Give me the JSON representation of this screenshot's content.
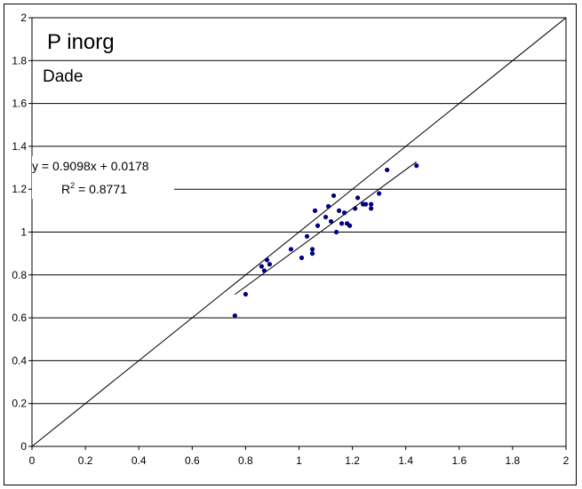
{
  "chart_data": {
    "type": "scatter",
    "title": "P inorg",
    "subtitle": "Dade",
    "xlabel": "",
    "ylabel": "",
    "xlim": [
      0,
      2
    ],
    "ylim": [
      0,
      2
    ],
    "x_ticks": [
      "0",
      "0.2",
      "0.4",
      "0.6",
      "0.8",
      "1",
      "1.2",
      "1.4",
      "1.6",
      "1.8",
      "2"
    ],
    "y_ticks": [
      "0",
      "0.2",
      "0.4",
      "0.6",
      "0.8",
      "1",
      "1.2",
      "1.4",
      "1.6",
      "1.8",
      "2"
    ],
    "grid": "horizontal",
    "legend": "none",
    "marker_color": "#000080",
    "line_color": "#000000",
    "reference_line": {
      "from": [
        0,
        0
      ],
      "to": [
        2,
        2
      ]
    },
    "trendline": {
      "slope": 0.9098,
      "intercept": 0.0178,
      "x_range": [
        0.76,
        1.44
      ]
    },
    "equation_text": "y = 0.9098x + 0.0178",
    "r2_prefix": "R",
    "r2_sup": "2",
    "r2_suffix": " = 0.8771",
    "points": [
      {
        "x": 0.76,
        "y": 0.61
      },
      {
        "x": 0.8,
        "y": 0.71
      },
      {
        "x": 0.86,
        "y": 0.84
      },
      {
        "x": 0.87,
        "y": 0.82
      },
      {
        "x": 0.88,
        "y": 0.87
      },
      {
        "x": 0.89,
        "y": 0.85
      },
      {
        "x": 0.97,
        "y": 0.92
      },
      {
        "x": 1.01,
        "y": 0.88
      },
      {
        "x": 1.03,
        "y": 0.98
      },
      {
        "x": 1.05,
        "y": 0.92
      },
      {
        "x": 1.05,
        "y": 0.9
      },
      {
        "x": 1.06,
        "y": 1.1
      },
      {
        "x": 1.07,
        "y": 1.03
      },
      {
        "x": 1.1,
        "y": 1.07
      },
      {
        "x": 1.11,
        "y": 1.12
      },
      {
        "x": 1.12,
        "y": 1.05
      },
      {
        "x": 1.13,
        "y": 1.17
      },
      {
        "x": 1.14,
        "y": 1.0
      },
      {
        "x": 1.15,
        "y": 1.1
      },
      {
        "x": 1.16,
        "y": 1.04
      },
      {
        "x": 1.17,
        "y": 1.09
      },
      {
        "x": 1.18,
        "y": 1.04
      },
      {
        "x": 1.19,
        "y": 1.03
      },
      {
        "x": 1.21,
        "y": 1.11
      },
      {
        "x": 1.22,
        "y": 1.16
      },
      {
        "x": 1.24,
        "y": 1.13
      },
      {
        "x": 1.25,
        "y": 1.13
      },
      {
        "x": 1.27,
        "y": 1.13
      },
      {
        "x": 1.27,
        "y": 1.11
      },
      {
        "x": 1.3,
        "y": 1.18
      },
      {
        "x": 1.33,
        "y": 1.29
      },
      {
        "x": 1.44,
        "y": 1.31
      }
    ]
  }
}
